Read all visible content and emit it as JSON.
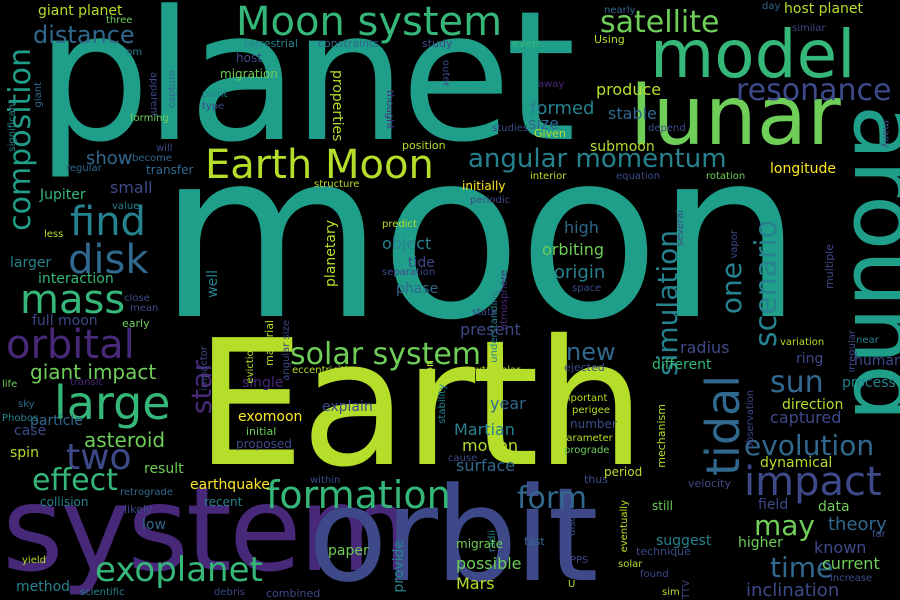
{
  "background": "#000000",
  "palette": [
    "#fde725",
    "#b5de2b",
    "#6ece58",
    "#35b779",
    "#1f9e89",
    "#26828e",
    "#31688e",
    "#3e4989",
    "#482878",
    "#440154"
  ],
  "words": [
    {
      "text": "moon",
      "color": "#1f9e89"
    },
    {
      "text": "planet",
      "color": "#1f9e89"
    },
    {
      "text": "Earth",
      "color": "#b5de2b"
    },
    {
      "text": "system",
      "color": "#482878"
    },
    {
      "text": "orbit",
      "color": "#3e4989"
    },
    {
      "text": "lunar",
      "color": "#6ece58"
    },
    {
      "text": "model",
      "color": "#35b779"
    },
    {
      "text": "around",
      "color": "#1f9e89"
    },
    {
      "text": "Moon system",
      "color": "#35b779"
    },
    {
      "text": "Earth Moon",
      "color": "#b5de2b"
    },
    {
      "text": "composition",
      "color": "#1f9e89"
    },
    {
      "text": "satellite",
      "color": "#6ece58"
    },
    {
      "text": "angular momentum",
      "color": "#26828e"
    },
    {
      "text": "resonance",
      "color": "#3e4989"
    },
    {
      "text": "distance",
      "color": "#31688e"
    },
    {
      "text": "find",
      "color": "#26828e"
    },
    {
      "text": "disk",
      "color": "#31688e"
    },
    {
      "text": "mass",
      "color": "#35b779"
    },
    {
      "text": "orbital",
      "color": "#482878"
    },
    {
      "text": "large",
      "color": "#35b779"
    },
    {
      "text": "two",
      "color": "#3e4989"
    },
    {
      "text": "effect",
      "color": "#35b779"
    },
    {
      "text": "exoplanet",
      "color": "#35b779"
    },
    {
      "text": "formation",
      "color": "#35b779"
    },
    {
      "text": "solar system",
      "color": "#6ece58"
    },
    {
      "text": "impact",
      "color": "#3e4989"
    },
    {
      "text": "evolution",
      "color": "#31688e"
    },
    {
      "text": "tidal",
      "color": "#31688e"
    },
    {
      "text": "scenario",
      "color": "#26828e"
    },
    {
      "text": "simulation",
      "color": "#26828e"
    },
    {
      "text": "sun",
      "color": "#31688e"
    },
    {
      "text": "one",
      "color": "#26828e"
    },
    {
      "text": "form",
      "color": "#31688e"
    },
    {
      "text": "may",
      "color": "#6ece58"
    },
    {
      "text": "time",
      "color": "#31688e"
    },
    {
      "text": "star",
      "color": "#482878"
    },
    {
      "text": "giant impact",
      "color": "#6ece58"
    },
    {
      "text": "asteroid",
      "color": "#6ece58"
    },
    {
      "text": "new",
      "color": "#31688e"
    },
    {
      "text": "theory",
      "color": "#31688e"
    },
    {
      "text": "inclination",
      "color": "#3e4989"
    },
    {
      "text": "giant planet",
      "color": "#b5de2b"
    },
    {
      "text": "host planet",
      "color": "#b5de2b"
    },
    {
      "text": "Jupiter",
      "color": "#35b779"
    },
    {
      "text": "formed",
      "color": "#26828e"
    },
    {
      "text": "size",
      "color": "#31688e"
    },
    {
      "text": "stable",
      "color": "#31688e"
    },
    {
      "text": "produce",
      "color": "#b5de2b"
    },
    {
      "text": "submoon",
      "color": "#b5de2b"
    },
    {
      "text": "longitude",
      "color": "#fde725"
    },
    {
      "text": "show",
      "color": "#31688e"
    },
    {
      "text": "small",
      "color": "#3e4989"
    },
    {
      "text": "object",
      "color": "#26828e"
    },
    {
      "text": "tide",
      "color": "#3e4989"
    },
    {
      "text": "orbiting",
      "color": "#6ece58"
    },
    {
      "text": "origin",
      "color": "#26828e"
    },
    {
      "text": "high",
      "color": "#31688e"
    },
    {
      "text": "phase",
      "color": "#31688e"
    },
    {
      "text": "planetary",
      "color": "#b5de2b"
    },
    {
      "text": "properties",
      "color": "#b5de2b"
    },
    {
      "text": "interaction",
      "color": "#35b779"
    },
    {
      "text": "full moon",
      "color": "#3e4989"
    },
    {
      "text": "larger",
      "color": "#26828e"
    },
    {
      "text": "captured",
      "color": "#3e4989"
    },
    {
      "text": "radius",
      "color": "#3e4989"
    },
    {
      "text": "Martian",
      "color": "#26828e"
    },
    {
      "text": "year",
      "color": "#31688e"
    },
    {
      "text": "motion",
      "color": "#b5de2b"
    },
    {
      "text": "surface",
      "color": "#31688e"
    },
    {
      "text": "present",
      "color": "#3e4989"
    },
    {
      "text": "earthquake",
      "color": "#fde725"
    },
    {
      "text": "result",
      "color": "#6ece58"
    },
    {
      "text": "dynamical",
      "color": "#b5de2b"
    },
    {
      "text": "known",
      "color": "#3e4989"
    },
    {
      "text": "current",
      "color": "#6ece58"
    },
    {
      "text": "Mars",
      "color": "#b5de2b"
    },
    {
      "text": "possible",
      "color": "#6ece58"
    },
    {
      "text": "provide",
      "color": "#26828e"
    },
    {
      "text": "paper",
      "color": "#6ece58"
    },
    {
      "text": "method",
      "color": "#26828e"
    },
    {
      "text": "low",
      "color": "#31688e"
    },
    {
      "text": "higher",
      "color": "#6ece58"
    },
    {
      "text": "suggest",
      "color": "#26828e"
    },
    {
      "text": "exomoon",
      "color": "#fde725"
    },
    {
      "text": "explain",
      "color": "#3e4989"
    },
    {
      "text": "case",
      "color": "#3e4989"
    },
    {
      "text": "spin",
      "color": "#b5de2b"
    },
    {
      "text": "particle",
      "color": "#31688e"
    },
    {
      "text": "collision",
      "color": "#26828e"
    },
    {
      "text": "data",
      "color": "#6ece58"
    },
    {
      "text": "field",
      "color": "#3e4989"
    },
    {
      "text": "direction",
      "color": "#b5de2b"
    },
    {
      "text": "ring",
      "color": "#3e4989"
    },
    {
      "text": "human",
      "color": "#3e4989"
    },
    {
      "text": "process",
      "color": "#26828e"
    },
    {
      "text": "different",
      "color": "#35b779"
    },
    {
      "text": "single",
      "color": "#482878"
    },
    {
      "text": "distance2",
      "color": "#31688e"
    }
  ],
  "small_words": [
    "terrestrial",
    "constraints",
    "study",
    "even",
    "Using",
    "nearly",
    "three",
    "pm",
    "host",
    "migration",
    "apparent",
    "capture",
    "point",
    "type",
    "forming",
    "will",
    "become",
    "transfer",
    "regular",
    "significant",
    "giant",
    "value",
    "less",
    "initially",
    "structure",
    "interior",
    "equation",
    "rotation",
    "periodic",
    "predict",
    "well",
    "material",
    "angular size",
    "eviction",
    "impactor",
    "mean",
    "close",
    "early",
    "understanding",
    "atmosphere",
    "separation",
    "space",
    "vapor",
    "several",
    "multiple",
    "irregular",
    "observation",
    "variation",
    "near",
    "eccentricities",
    "extrasolar",
    "ejected",
    "transit",
    "life",
    "sky",
    "Phobos",
    "important",
    "perigee",
    "number",
    "initial",
    "proposed",
    "photo evaporation",
    "stability",
    "mechanism",
    "parameter",
    "prograde",
    "cause",
    "within",
    "thus",
    "retrograde",
    "likely",
    "recent",
    "eventually",
    "period",
    "velocity",
    "still",
    "radii",
    "disc",
    "fast",
    "technique",
    "migrate",
    "PPS",
    "found",
    "solar",
    "sim",
    "TTV",
    "increase",
    "far",
    "yield",
    "scientific",
    "debris",
    "combined",
    "day",
    "similar",
    "many",
    "outer",
    "away",
    "thought",
    "depend",
    "Given",
    "studies",
    "position",
    "state",
    "U"
  ]
}
